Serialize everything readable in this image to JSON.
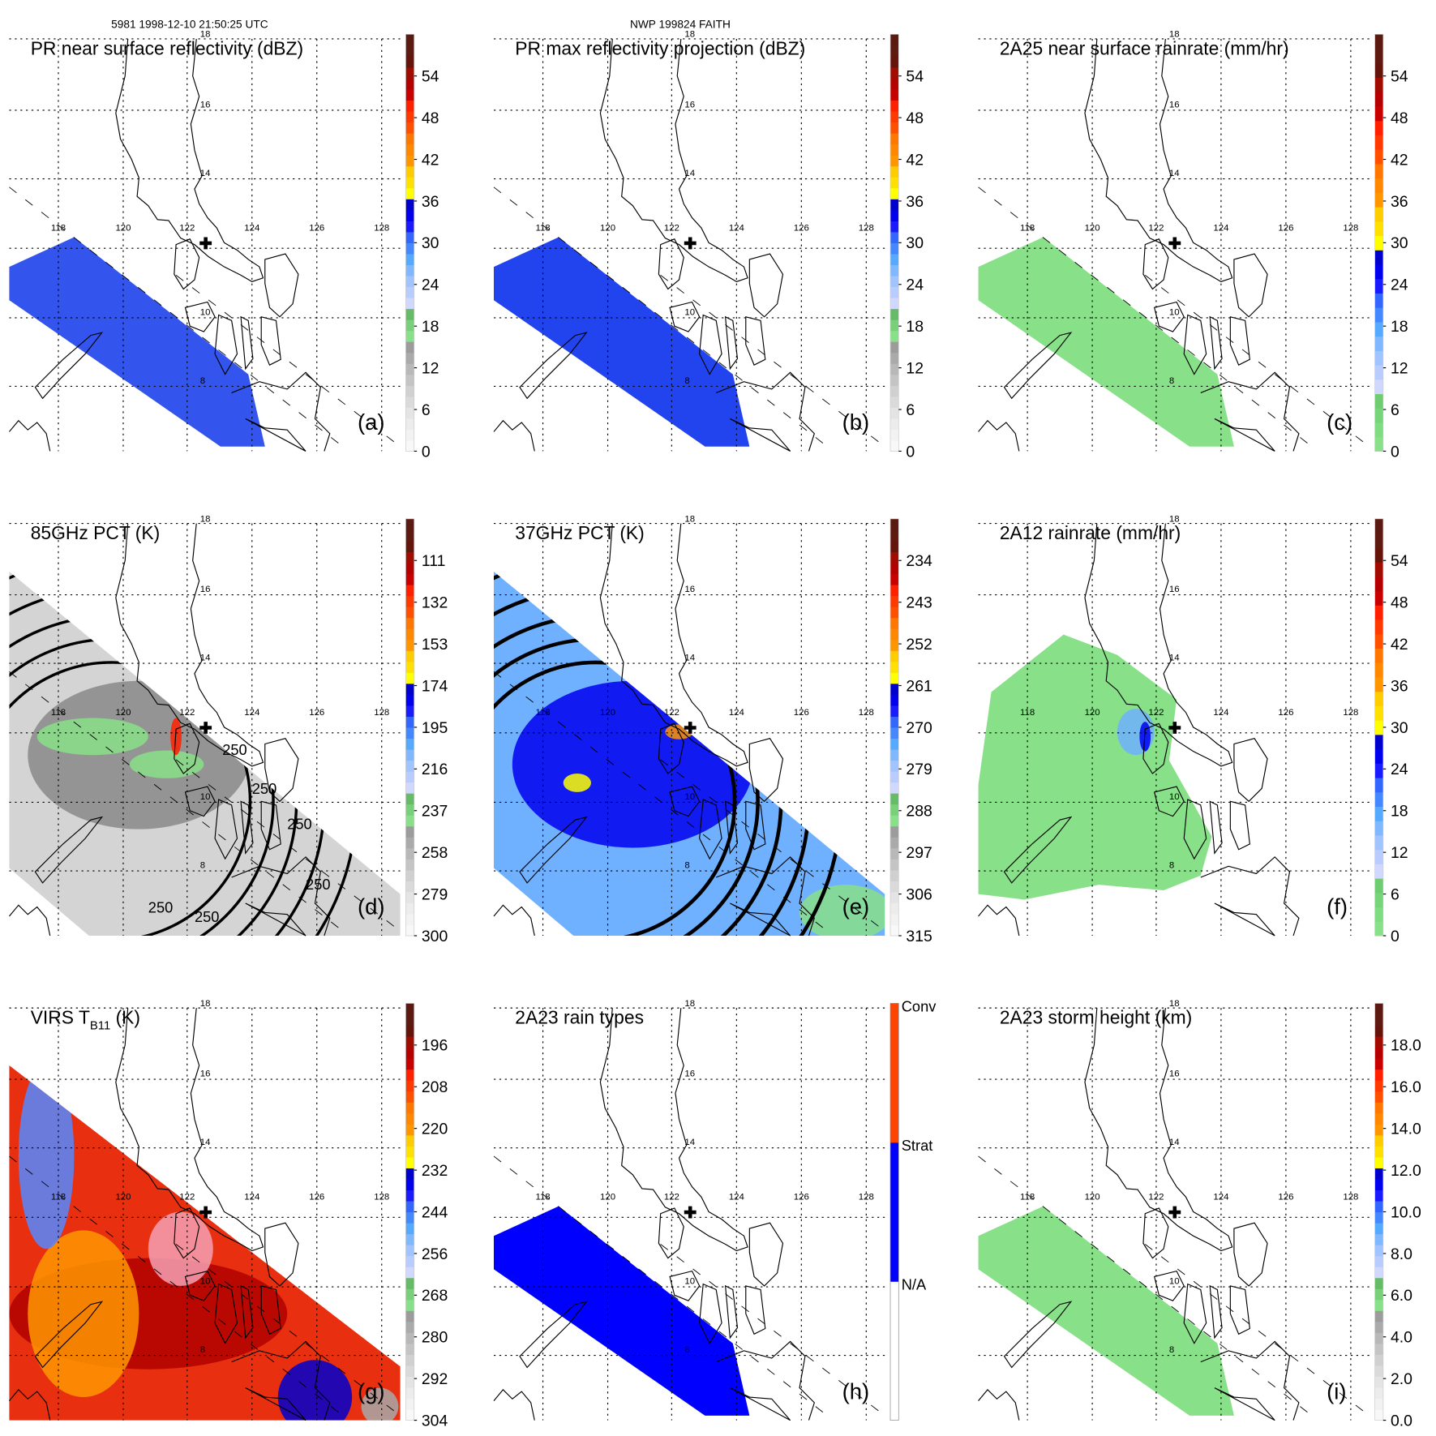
{
  "header": {
    "left": "5981 1998-12-10 21:50:25 UTC",
    "center": "NWP 199824 FAITH"
  },
  "map": {
    "lat_labels": [
      "18",
      "16",
      "14",
      "10",
      "8"
    ],
    "lon_labels": [
      "118",
      "120",
      "122",
      "124",
      "126",
      "128"
    ],
    "center_marker": "storm-center-cross"
  },
  "palettes": {
    "standard": [
      "#f8f8f8",
      "#f2f2f2",
      "#ececec",
      "#e4e4e4",
      "#dadada",
      "#d0d0d0",
      "#c4c4c4",
      "#b8b8b8",
      "#aaaaaa",
      "#9c9c9c",
      "#88e088",
      "#78d078",
      "#66bb66",
      "#d0d8ff",
      "#b8ccff",
      "#a0c4ff",
      "#7fb8ff",
      "#55aaff",
      "#4488ff",
      "#3366ff",
      "#1a1aff",
      "#0000ee",
      "#0000cc",
      "#ffff00",
      "#ffe000",
      "#ffcc00",
      "#ff9600",
      "#ff8800",
      "#ff7700",
      "#ff5000",
      "#ff3a00",
      "#ff2000",
      "#c80000",
      "#b40000",
      "#a00c00",
      "#64140a",
      "#5e1a10",
      "#5a1a12"
    ],
    "rain": [
      "#88e088",
      "#80dc80",
      "#78d478",
      "#70cc70",
      "#d0d8ff",
      "#b8ccff",
      "#a0c4ff",
      "#7fb8ff",
      "#55aaff",
      "#4488ff",
      "#3366ff",
      "#1a1aff",
      "#0000ee",
      "#0000cc",
      "#ffff00",
      "#ffe000",
      "#ffcc00",
      "#ff9600",
      "#ff8800",
      "#ff7700",
      "#ff5000",
      "#ff3a00",
      "#ff2000",
      "#c80000",
      "#b40000",
      "#a00c00",
      "#64140a",
      "#5e1a10",
      "#5a1a12"
    ],
    "raintype": [
      "#ffffff",
      "#ffffff",
      "#ffffff",
      "#0000ff",
      "#0000ff",
      "#0000ff",
      "#ff4400",
      "#ff4400",
      "#ff4400"
    ]
  },
  "panels": [
    {
      "title": "PR near surface reflectivity (dBZ)",
      "tag": "(a)",
      "palette": "standard",
      "cbar_labels": [
        "0",
        "6",
        "12",
        "18",
        "24",
        "30",
        "36",
        "42",
        "48",
        "54"
      ],
      "kind": "pr",
      "main": "#3355ee"
    },
    {
      "title": "PR max reflectivity projection (dBZ)",
      "tag": "(b)",
      "palette": "standard",
      "cbar_labels": [
        "0",
        "6",
        "12",
        "18",
        "24",
        "30",
        "36",
        "42",
        "48",
        "54"
      ],
      "kind": "pr",
      "main": "#2244ee"
    },
    {
      "title": "2A25 near surface rainrate (mm/hr)",
      "tag": "(c)",
      "palette": "rain",
      "cbar_labels": [
        "0",
        "6",
        "12",
        "18",
        "24",
        "30",
        "36",
        "42",
        "48",
        "54"
      ],
      "kind": "pr",
      "main": "#88e088"
    },
    {
      "title": "85GHz PCT (K)",
      "tag": "(d)",
      "palette": "standard",
      "cbar_labels": [
        "300",
        "279",
        "258",
        "237",
        "216",
        "195",
        "174",
        "153",
        "132",
        "111"
      ],
      "kind": "tmi",
      "main": "#d4d4d4",
      "contour_labels": [
        "250",
        "250",
        "250",
        "250",
        "250",
        "250"
      ]
    },
    {
      "title": "37GHz PCT (K)",
      "tag": "(e)",
      "palette": "standard",
      "cbar_labels": [
        "315",
        "306",
        "297",
        "288",
        "279",
        "270",
        "261",
        "252",
        "243",
        "234"
      ],
      "kind": "tmi",
      "main": "#6fb0ff"
    },
    {
      "title": "2A12 rainrate (mm/hr)",
      "tag": "(f)",
      "palette": "rain",
      "cbar_labels": [
        "0",
        "6",
        "12",
        "18",
        "24",
        "30",
        "36",
        "42",
        "48",
        "54"
      ],
      "kind": "blob",
      "main": "#88e088"
    },
    {
      "title": "VIRS T",
      "title_sub": "B11",
      "title_after": " (K)",
      "tag": "(g)",
      "palette": "standard",
      "cbar_labels": [
        "304",
        "292",
        "280",
        "268",
        "256",
        "244",
        "232",
        "220",
        "208",
        "196"
      ],
      "kind": "virs",
      "main": "#e83010"
    },
    {
      "title": "2A23 rain types",
      "tag": "(h)",
      "palette": "raintype",
      "cbar_labels": [
        "N/A",
        "Strat",
        "Conv"
      ],
      "kind": "pr",
      "main": "#0000ff"
    },
    {
      "title": "2A23 storm height (km)",
      "tag": "(i)",
      "palette": "standard",
      "cbar_labels": [
        "0.0",
        "2.0",
        "4.0",
        "6.0",
        "8.0",
        "10.0",
        "12.0",
        "14.0",
        "16.0",
        "18.0"
      ],
      "kind": "pr",
      "main": "#88e088"
    }
  ]
}
